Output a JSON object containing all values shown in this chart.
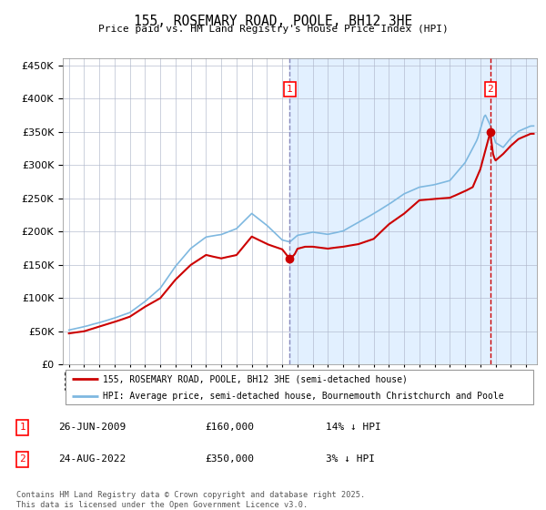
{
  "title": "155, ROSEMARY ROAD, POOLE, BH12 3HE",
  "subtitle": "Price paid vs. HM Land Registry's House Price Index (HPI)",
  "legend_line1": "155, ROSEMARY ROAD, POOLE, BH12 3HE (semi-detached house)",
  "legend_line2": "HPI: Average price, semi-detached house, Bournemouth Christchurch and Poole",
  "footnote": "Contains HM Land Registry data © Crown copyright and database right 2025.\nThis data is licensed under the Open Government Licence v3.0.",
  "marker1_date": "26-JUN-2009",
  "marker1_price": "£160,000",
  "marker1_hpi": "14% ↓ HPI",
  "marker1_x": 2009.49,
  "marker1_y": 160000,
  "marker2_date": "24-AUG-2022",
  "marker2_price": "£350,000",
  "marker2_hpi": "3% ↓ HPI",
  "marker2_x": 2022.65,
  "marker2_y": 350000,
  "hpi_color": "#7eb8e0",
  "price_color": "#cc0000",
  "vline1_color": "#8888bb",
  "vline2_color": "#cc0000",
  "bg_shade_color": "#ddeeff",
  "ylim": [
    0,
    460000
  ],
  "xlim_start": 1994.6,
  "xlim_end": 2025.7,
  "ytick_step": 50000,
  "grid_color": "#b0b8cc",
  "label1": "1",
  "label2": "2"
}
